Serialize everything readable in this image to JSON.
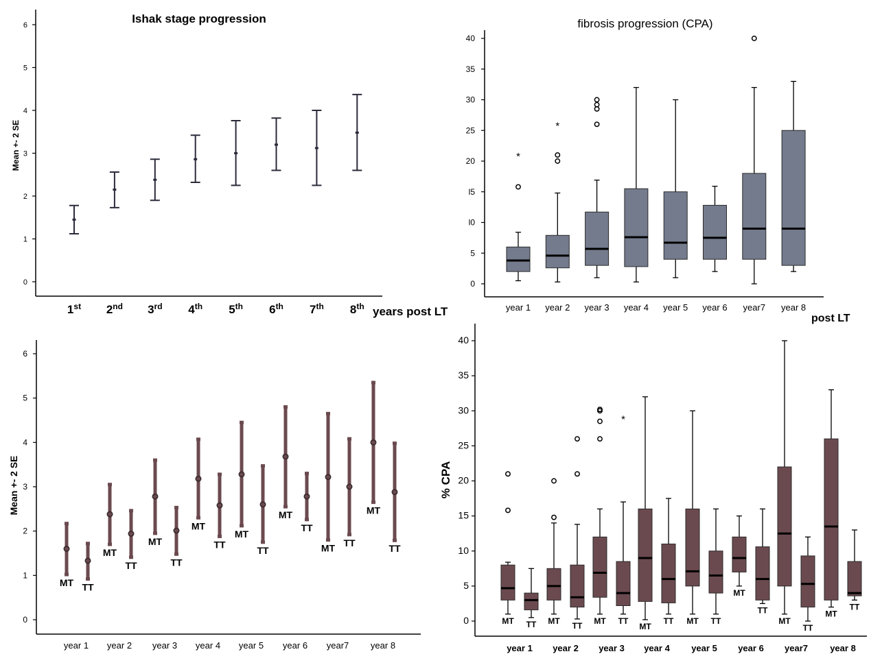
{
  "chart_data": [
    {
      "id": "p1",
      "type": "errorbar",
      "title": "Ishak stage progression",
      "ylabel": "Mean +- 2 SE",
      "xlabel": "years post LT",
      "ylim": [
        0,
        6
      ],
      "yticks": [
        "0",
        "1",
        "2",
        "3",
        "4",
        "5",
        "6"
      ],
      "categories": [
        {
          "base": "1",
          "sup": "st"
        },
        {
          "base": "2",
          "sup": "nd"
        },
        {
          "base": "3",
          "sup": "rd"
        },
        {
          "base": "4",
          "sup": "th"
        },
        {
          "base": "5",
          "sup": "th"
        },
        {
          "base": "6",
          "sup": "th"
        },
        {
          "base": "7",
          "sup": "th"
        },
        {
          "base": "8",
          "sup": "th"
        }
      ],
      "mean": [
        1.45,
        2.15,
        2.38,
        2.86,
        3.0,
        3.2,
        3.12,
        3.48
      ],
      "low": [
        1.12,
        1.73,
        1.9,
        2.32,
        2.25,
        2.6,
        2.25,
        2.6
      ],
      "high": [
        1.78,
        2.56,
        2.86,
        3.42,
        3.76,
        3.82,
        4.0,
        4.37
      ],
      "color": "#2a2a3a"
    },
    {
      "id": "p2",
      "type": "box",
      "title": "fibrosis progression (CPA)",
      "xlabel": "post LT",
      "ylim": [
        0,
        40
      ],
      "yticks": [
        "0",
        "5",
        "10",
        "15",
        "20",
        "25",
        "30",
        "35",
        "40"
      ],
      "ytick_display": [
        "0",
        "5",
        "l0",
        "l5",
        "20",
        "25",
        "30",
        "35",
        "40"
      ],
      "categories": [
        "year 1",
        "year 2",
        "year 3",
        "year 4",
        "year 5",
        "year 6",
        "year7",
        "year 8"
      ],
      "boxes": [
        {
          "min": 0.5,
          "q1": 2.0,
          "median": 3.8,
          "q3": 6.0,
          "max": 8.4,
          "outliers": [
            15.8
          ],
          "extremes": [
            21
          ]
        },
        {
          "min": 0.3,
          "q1": 2.6,
          "median": 4.6,
          "q3": 7.9,
          "max": 14.8,
          "outliers": [
            20,
            21
          ],
          "extremes": [
            26
          ]
        },
        {
          "min": 1.0,
          "q1": 3.0,
          "median": 5.7,
          "q3": 11.7,
          "max": 16.9,
          "outliers": [
            26,
            28.5,
            29.2,
            30
          ],
          "extremes": []
        },
        {
          "min": 0.3,
          "q1": 2.8,
          "median": 7.6,
          "q3": 15.5,
          "max": 32,
          "outliers": [],
          "extremes": []
        },
        {
          "min": 1.0,
          "q1": 4.0,
          "median": 6.7,
          "q3": 15.0,
          "max": 30,
          "outliers": [],
          "extremes": []
        },
        {
          "min": 2.0,
          "q1": 4.0,
          "median": 7.5,
          "q3": 12.8,
          "max": 15.9,
          "outliers": [],
          "extremes": []
        },
        {
          "min": 0.0,
          "q1": 4.0,
          "median": 9.0,
          "q3": 18.0,
          "max": 32,
          "outliers": [
            40
          ],
          "extremes": []
        },
        {
          "min": 2.0,
          "q1": 3.0,
          "median": 9.0,
          "q3": 25.0,
          "max": 33,
          "outliers": [],
          "extremes": []
        }
      ],
      "color": "#737b8d"
    },
    {
      "id": "p3",
      "type": "errorbar",
      "ylabel": "Mean +- 2 SE",
      "ylim": [
        0,
        6
      ],
      "yticks": [
        "0",
        "1",
        "2",
        "3",
        "4",
        "5",
        "6"
      ],
      "categories": [
        "year 1",
        "year 2",
        "year 3",
        "year 4",
        "year 5",
        "year 6",
        "year7",
        "year 8"
      ],
      "series": [
        {
          "name": "MT",
          "mean": [
            1.6,
            2.38,
            2.78,
            3.18,
            3.28,
            3.68,
            3.22,
            4.0
          ],
          "low": [
            1.02,
            1.7,
            1.95,
            2.3,
            2.12,
            2.55,
            1.8,
            2.65
          ],
          "high": [
            2.17,
            3.05,
            3.6,
            4.07,
            4.45,
            4.8,
            4.65,
            5.35
          ]
        },
        {
          "name": "TT",
          "mean": [
            1.33,
            1.94,
            2.01,
            2.58,
            2.6,
            2.78,
            3.0,
            2.88
          ],
          "low": [
            0.92,
            1.41,
            1.48,
            1.88,
            1.75,
            2.26,
            1.92,
            1.79
          ],
          "high": [
            1.72,
            2.46,
            2.53,
            3.28,
            3.47,
            3.3,
            4.08,
            3.98
          ]
        }
      ],
      "color": "#6b4a4f"
    },
    {
      "id": "p4",
      "type": "box",
      "ylabel": "% CPA",
      "ylim": [
        0,
        40
      ],
      "yticks": [
        "0",
        "5",
        "10",
        "15",
        "20",
        "25",
        "30",
        "35",
        "40"
      ],
      "categories": [
        "year 1",
        "year 2",
        "year 3",
        "year 4",
        "year 5",
        "year 6",
        "year7",
        "year 8"
      ],
      "series": [
        {
          "name": "MT",
          "boxes": [
            {
              "min": 1.0,
              "q1": 3.0,
              "median": 4.7,
              "q3": 8.0,
              "max": 8.4,
              "outliers": [
                15.8,
                21
              ],
              "extremes": []
            },
            {
              "min": 1.0,
              "q1": 3.0,
              "median": 5.0,
              "q3": 7.5,
              "max": 14.0,
              "outliers": [
                14.8,
                20
              ],
              "extremes": []
            },
            {
              "min": 1.0,
              "q1": 3.4,
              "median": 6.9,
              "q3": 12.0,
              "max": 16.0,
              "outliers": [
                26,
                28.5,
                30,
                30.2
              ],
              "extremes": []
            },
            {
              "min": 0.2,
              "q1": 2.8,
              "median": 9.0,
              "q3": 16.0,
              "max": 32,
              "outliers": [],
              "extremes": []
            },
            {
              "min": 1.0,
              "q1": 5.0,
              "median": 7.1,
              "q3": 16.0,
              "max": 30,
              "outliers": [],
              "extremes": []
            },
            {
              "min": 5.0,
              "q1": 7.0,
              "median": 9.0,
              "q3": 12.0,
              "max": 15.0,
              "outliers": [],
              "extremes": []
            },
            {
              "min": 1.0,
              "q1": 5.0,
              "median": 12.5,
              "q3": 22.0,
              "max": 40,
              "outliers": [],
              "extremes": []
            },
            {
              "min": 2.0,
              "q1": 3.0,
              "median": 13.5,
              "q3": 26.0,
              "max": 33,
              "outliers": [],
              "extremes": []
            }
          ]
        },
        {
          "name": "TT",
          "boxes": [
            {
              "min": 0.5,
              "q1": 1.6,
              "median": 3.0,
              "q3": 4.0,
              "max": 7.5,
              "outliers": [],
              "extremes": []
            },
            {
              "min": 0.3,
              "q1": 2.0,
              "median": 3.4,
              "q3": 8.0,
              "max": 13.8,
              "outliers": [
                21,
                26
              ],
              "extremes": []
            },
            {
              "min": 1.0,
              "q1": 2.2,
              "median": 4.0,
              "q3": 8.5,
              "max": 17.0,
              "outliers": [],
              "extremes": [
                29
              ]
            },
            {
              "min": 1.0,
              "q1": 2.6,
              "median": 6.0,
              "q3": 11.0,
              "max": 17.5,
              "outliers": [],
              "extremes": []
            },
            {
              "min": 1.0,
              "q1": 4.0,
              "median": 6.5,
              "q3": 10.0,
              "max": 16.0,
              "outliers": [],
              "extremes": []
            },
            {
              "min": 2.5,
              "q1": 3.0,
              "median": 6.0,
              "q3": 10.6,
              "max": 16.0,
              "outliers": [],
              "extremes": []
            },
            {
              "min": 0.0,
              "q1": 2.0,
              "median": 5.3,
              "q3": 9.3,
              "max": 12.0,
              "outliers": [],
              "extremes": []
            },
            {
              "min": 3.0,
              "q1": 3.6,
              "median": 4.0,
              "q3": 8.5,
              "max": 13.0,
              "outliers": [],
              "extremes": []
            }
          ]
        }
      ],
      "color": "#6b4a4f"
    }
  ]
}
